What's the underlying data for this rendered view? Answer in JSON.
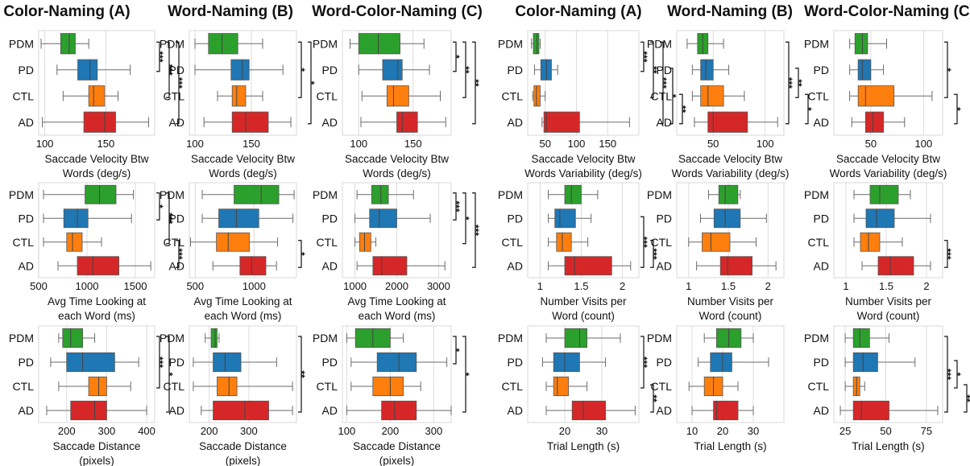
{
  "column_titles": [
    "Color-Naming (A)",
    "Word-Naming (B)",
    "Word-Color-Naming (C)",
    "Color-Naming (A)",
    "Word-Naming (B)",
    "Word-Color-Naming (C)"
  ],
  "groups": [
    "PDM",
    "PD",
    "CTL",
    "AD"
  ],
  "colors": {
    "PDM": "#2ca02c",
    "PD": "#1f77b4",
    "CTL": "#ff7f0e",
    "AD": "#d62728"
  },
  "chart_data": [
    {
      "type": "box",
      "row": 0,
      "col": 0,
      "xlabel": [
        "Saccade Velocity Btw",
        "Words (deg/s)"
      ],
      "xlim": [
        95,
        190
      ],
      "ticks": [
        100,
        150
      ],
      "boxes": {
        "PDM": [
          97,
          113,
          120,
          125,
          136
        ],
        "PD": [
          110,
          127,
          137,
          143,
          170
        ],
        "CTL": [
          115,
          136,
          140,
          149,
          160
        ],
        "AD": [
          98,
          132,
          149,
          158,
          185
        ]
      },
      "sig": [
        {
          "a": 0,
          "b": 1,
          "label": "***"
        },
        {
          "a": 0,
          "b": 2,
          "label": "***"
        },
        {
          "a": 0,
          "b": 3,
          "label": "***"
        }
      ]
    },
    {
      "type": "box",
      "row": 0,
      "col": 1,
      "xlabel": [
        "Saccade Velocity Btw",
        "Words (deg/s)"
      ],
      "xlim": [
        95,
        190
      ],
      "ticks": [
        100,
        150
      ],
      "boxes": {
        "PDM": [
          100,
          112,
          124,
          138,
          160
        ],
        "PD": [
          100,
          132,
          142,
          148,
          178
        ],
        "CTL": [
          120,
          133,
          137,
          145,
          160
        ],
        "AD": [
          108,
          133,
          145,
          165,
          185
        ]
      },
      "sig": [
        {
          "a": 0,
          "b": 2,
          "label": "*"
        },
        {
          "a": 0,
          "b": 3,
          "label": "*"
        }
      ]
    },
    {
      "type": "box",
      "row": 0,
      "col": 2,
      "xlabel": [
        "Saccade Velocity Btw",
        "Words (deg/s)"
      ],
      "xlim": [
        85,
        185
      ],
      "ticks": [
        100,
        150
      ],
      "boxes": {
        "PDM": [
          92,
          100,
          118,
          138,
          160
        ],
        "PD": [
          100,
          122,
          136,
          140,
          165
        ],
        "CTL": [
          103,
          126,
          132,
          146,
          175
        ],
        "AD": [
          102,
          135,
          140,
          154,
          180
        ]
      },
      "sig": [
        {
          "a": 0,
          "b": 1,
          "label": "*"
        },
        {
          "a": 0,
          "b": 2,
          "label": "**"
        },
        {
          "a": 0,
          "b": 3,
          "label": "**"
        }
      ]
    },
    {
      "type": "box",
      "row": 0,
      "col": 3,
      "xlabel": [
        "Saccade Velocity Btw",
        "Words Variability (deg/s)"
      ],
      "xlim": [
        22,
        200
      ],
      "ticks": [
        50,
        100,
        150
      ],
      "boxes": {
        "PDM": [
          28,
          31,
          37,
          40,
          42
        ],
        "PD": [
          33,
          43,
          52,
          60,
          70
        ],
        "CTL": [
          30,
          32,
          36,
          42,
          50
        ],
        "AD": [
          45,
          48,
          52,
          105,
          185
        ]
      },
      "sig": [
        {
          "a": 0,
          "b": 1,
          "label": "***"
        },
        {
          "a": 0,
          "b": 2,
          "label": "**"
        },
        {
          "a": 0,
          "b": 3,
          "label": "***"
        },
        {
          "a": 1,
          "b": 3,
          "label": "*"
        },
        {
          "a": 2,
          "b": 3,
          "label": "**"
        }
      ]
    },
    {
      "type": "box",
      "row": 0,
      "col": 4,
      "xlabel": [
        "Saccade Velocity Btw",
        "Words Variability (deg/s)"
      ],
      "xlim": [
        15,
        118
      ],
      "ticks": [
        50,
        100
      ],
      "boxes": {
        "PDM": [
          25,
          35,
          40,
          45,
          60
        ],
        "PD": [
          30,
          38,
          43,
          50,
          65
        ],
        "CTL": [
          30,
          38,
          45,
          60,
          80
        ],
        "AD": [
          32,
          45,
          50,
          83,
          112
        ]
      },
      "sig": [
        {
          "a": 0,
          "b": 3,
          "label": "***"
        },
        {
          "a": 1,
          "b": 2,
          "label": "**"
        },
        {
          "a": 2,
          "b": 3,
          "label": "*"
        }
      ]
    },
    {
      "type": "box",
      "row": 0,
      "col": 5,
      "xlabel": [
        "Saccade Velocity Btw",
        "Words Variability (deg/s)"
      ],
      "xlim": [
        15,
        118
      ],
      "ticks": [
        50,
        100
      ],
      "boxes": {
        "PDM": [
          30,
          35,
          42,
          47,
          65
        ],
        "PD": [
          30,
          38,
          42,
          50,
          62
        ],
        "CTL": [
          30,
          38,
          45,
          72,
          108
        ],
        "AD": [
          32,
          45,
          52,
          62,
          82
        ]
      },
      "sig": [
        {
          "a": 0,
          "b": 2,
          "label": "*"
        },
        {
          "a": 2,
          "b": 3,
          "label": "*"
        }
      ]
    },
    {
      "type": "box",
      "row": 1,
      "col": 0,
      "xlabel": [
        "Avg Time Looking at",
        "each Word (ms)"
      ],
      "xlim": [
        500,
        1700
      ],
      "ticks": [
        500,
        1000,
        1500
      ],
      "boxes": {
        "PDM": [
          550,
          980,
          1130,
          1300,
          1480
        ],
        "PD": [
          550,
          760,
          900,
          1010,
          1460
        ],
        "CTL": [
          550,
          790,
          850,
          950,
          1150
        ],
        "AD": [
          700,
          900,
          1060,
          1330,
          1660
        ]
      },
      "sig": [
        {
          "a": 0,
          "b": 1,
          "label": "*"
        },
        {
          "a": 0,
          "b": 2,
          "label": "***"
        },
        {
          "a": 2,
          "b": 3,
          "label": "***"
        }
      ]
    },
    {
      "type": "box",
      "row": 1,
      "col": 1,
      "xlabel": [
        "Avg Time Looking at",
        "each Word (ms)"
      ],
      "xlim": [
        450,
        1360
      ],
      "ticks": [
        500,
        1000
      ],
      "boxes": {
        "PDM": [
          560,
          830,
          1060,
          1210,
          1340
        ],
        "PD": [
          560,
          700,
          850,
          1040,
          1330
        ],
        "CTL": [
          460,
          680,
          780,
          960,
          1200
        ],
        "AD": [
          650,
          880,
          980,
          1100,
          1190
        ]
      },
      "sig": [
        {
          "a": 2,
          "b": 3,
          "label": "*"
        }
      ]
    },
    {
      "type": "box",
      "row": 1,
      "col": 2,
      "xlabel": [
        "Avg Time Looking at",
        "each Word (ms)"
      ],
      "xlim": [
        700,
        3300
      ],
      "ticks": [
        1000,
        2000,
        3000
      ],
      "boxes": {
        "PDM": [
          1050,
          1400,
          1620,
          1800,
          2400
        ],
        "PD": [
          1000,
          1350,
          1580,
          2000,
          2800
        ],
        "CTL": [
          1000,
          1110,
          1230,
          1380,
          1500
        ],
        "AD": [
          1050,
          1430,
          1640,
          2240,
          3150
        ]
      },
      "sig": [
        {
          "a": 0,
          "b": 1,
          "label": "***"
        },
        {
          "a": 0,
          "b": 2,
          "label": "*"
        },
        {
          "a": 0,
          "b": 3,
          "label": "***"
        }
      ]
    },
    {
      "type": "box",
      "row": 1,
      "col": 3,
      "xlabel": [
        "Number Visits per",
        "Word (count)"
      ],
      "xlim": [
        0.85,
        2.2
      ],
      "ticks": [
        1.0,
        1.5,
        2.0
      ],
      "boxes": {
        "PDM": [
          1.1,
          1.3,
          1.38,
          1.5,
          1.7
        ],
        "PD": [
          1.1,
          1.18,
          1.24,
          1.43,
          1.62
        ],
        "CTL": [
          1.1,
          1.2,
          1.27,
          1.38,
          1.58
        ],
        "AD": [
          1.1,
          1.3,
          1.42,
          1.87,
          2.1
        ]
      },
      "sig": [
        {
          "a": 1,
          "b": 3,
          "label": "***"
        },
        {
          "a": 2,
          "b": 3,
          "label": "***"
        }
      ]
    },
    {
      "type": "box",
      "row": 1,
      "col": 4,
      "xlabel": [
        "Number Visits per",
        "Word (count)"
      ],
      "xlim": [
        0.85,
        2.2
      ],
      "ticks": [
        1.0,
        1.5,
        2.0
      ],
      "boxes": {
        "PDM": [
          1.25,
          1.38,
          1.46,
          1.62,
          1.65
        ],
        "PD": [
          1.15,
          1.32,
          1.46,
          1.65,
          1.98
        ],
        "CTL": [
          1.0,
          1.17,
          1.28,
          1.52,
          1.85
        ],
        "AD": [
          1.1,
          1.4,
          1.49,
          1.8,
          2.1
        ]
      },
      "sig": []
    },
    {
      "type": "box",
      "row": 1,
      "col": 5,
      "xlabel": [
        "Number Visits per",
        "Word (count)"
      ],
      "xlim": [
        0.85,
        2.2
      ],
      "ticks": [
        1.0,
        1.5,
        2.0
      ],
      "boxes": {
        "PDM": [
          1.1,
          1.3,
          1.42,
          1.65,
          1.8
        ],
        "PD": [
          1.1,
          1.25,
          1.38,
          1.6,
          2.05
        ],
        "CTL": [
          1.1,
          1.18,
          1.28,
          1.42,
          1.7
        ],
        "AD": [
          1.2,
          1.4,
          1.55,
          1.84,
          2.05
        ]
      },
      "sig": [
        {
          "a": 2,
          "b": 3,
          "label": "***"
        }
      ]
    },
    {
      "type": "box",
      "row": 2,
      "col": 0,
      "xlabel": [
        "Saccade Distance",
        "(pixels)"
      ],
      "xlim": [
        130,
        420
      ],
      "ticks": [
        200,
        300,
        400
      ],
      "boxes": {
        "PDM": [
          180,
          190,
          210,
          240,
          270
        ],
        "PD": [
          160,
          200,
          240,
          320,
          380
        ],
        "CTL": [
          180,
          255,
          280,
          300,
          360
        ],
        "AD": [
          150,
          210,
          270,
          300,
          400
        ]
      },
      "sig": [
        {
          "a": 0,
          "b": 2,
          "label": "***"
        },
        {
          "a": 0,
          "b": 3,
          "label": "*"
        }
      ]
    },
    {
      "type": "box",
      "row": 2,
      "col": 1,
      "xlabel": [
        "Saccade Distance",
        "(pixels)"
      ],
      "xlim": [
        150,
        420
      ],
      "ticks": [
        200,
        300
      ],
      "boxes": {
        "PDM": [
          190,
          205,
          215,
          220,
          225
        ],
        "PD": [
          160,
          210,
          240,
          280,
          370
        ],
        "CTL": [
          160,
          220,
          250,
          270,
          410
        ],
        "AD": [
          180,
          210,
          290,
          350,
          410
        ]
      },
      "sig": [
        {
          "a": 0,
          "b": 3,
          "label": "**"
        }
      ]
    },
    {
      "type": "box",
      "row": 2,
      "col": 2,
      "xlabel": [
        "Saccade Distance",
        "(pixels)"
      ],
      "xlim": [
        90,
        340
      ],
      "ticks": [
        100,
        200,
        300
      ],
      "boxes": {
        "PDM": [
          100,
          120,
          160,
          200,
          230
        ],
        "PD": [
          110,
          170,
          220,
          260,
          330
        ],
        "CTL": [
          110,
          160,
          200,
          230,
          270
        ],
        "AD": [
          100,
          180,
          210,
          260,
          340
        ]
      },
      "sig": [
        {
          "a": 0,
          "b": 1,
          "label": "*"
        },
        {
          "a": 0,
          "b": 3,
          "label": "*"
        }
      ]
    },
    {
      "type": "box",
      "row": 2,
      "col": 3,
      "xlabel": [
        "Trial Length (s)"
      ],
      "xlim": [
        10,
        40
      ],
      "ticks": [
        20,
        30
      ],
      "boxes": {
        "PDM": [
          15,
          20,
          24,
          26,
          35
        ],
        "PD": [
          14,
          17,
          20,
          24,
          31
        ],
        "CTL": [
          15,
          17,
          18,
          21,
          26
        ],
        "AD": [
          15,
          22,
          25,
          31,
          39
        ]
      },
      "sig": [
        {
          "a": 0,
          "b": 2,
          "label": "***"
        },
        {
          "a": 2,
          "b": 3,
          "label": "**"
        }
      ]
    },
    {
      "type": "box",
      "row": 2,
      "col": 4,
      "xlabel": [
        "Trial Length (s)"
      ],
      "xlim": [
        5,
        40
      ],
      "ticks": [
        10,
        20,
        30
      ],
      "boxes": {
        "PDM": [
          14,
          18,
          22,
          26,
          30
        ],
        "PD": [
          12,
          16,
          20,
          23,
          35
        ],
        "CTL": [
          9,
          14,
          17,
          20,
          25
        ],
        "AD": [
          10,
          17,
          18,
          25,
          30
        ]
      },
      "sig": []
    },
    {
      "type": "box",
      "row": 2,
      "col": 5,
      "xlabel": [
        "Trial Length (s)"
      ],
      "xlim": [
        18,
        85
      ],
      "ticks": [
        25,
        50,
        75
      ],
      "boxes": {
        "PDM": [
          25,
          30,
          34,
          40,
          52
        ],
        "PD": [
          25,
          30,
          36,
          45,
          68
        ],
        "CTL": [
          25,
          30,
          32,
          34,
          37
        ],
        "AD": [
          22,
          30,
          35,
          52,
          82
        ]
      },
      "sig": [
        {
          "a": 0,
          "b": 3,
          "label": "***"
        },
        {
          "a": 1,
          "b": 2,
          "label": "*"
        },
        {
          "a": 2,
          "b": 3,
          "label": "**"
        }
      ]
    }
  ]
}
